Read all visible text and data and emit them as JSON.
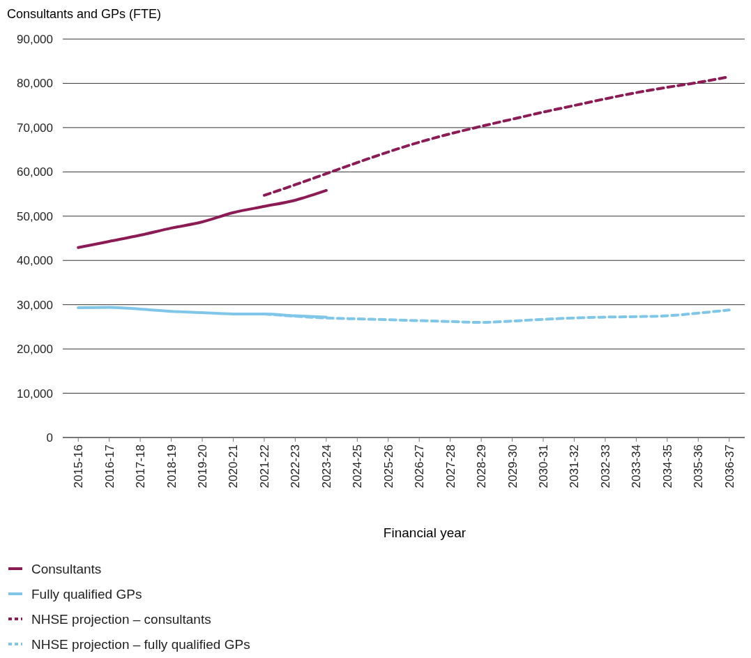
{
  "chart_data": {
    "type": "line",
    "ylabel": "Consultants and GPs (FTE)",
    "xlabel": "Financial year",
    "categories": [
      "2015-16",
      "2016-17",
      "2017-18",
      "2018-19",
      "2019-20",
      "2020-21",
      "2021-22",
      "2022-23",
      "2023-24",
      "2024-25",
      "2025-26",
      "2026-27",
      "2027-28",
      "2028-29",
      "2029-30",
      "2030-31",
      "2031-32",
      "2032-33",
      "2033-34",
      "2034-35",
      "2035-36",
      "2036-37"
    ],
    "series": [
      {
        "name": "Consultants",
        "color": "#8b1a55",
        "line_style": "solid",
        "values": [
          42900,
          44300,
          45700,
          47300,
          48700,
          50800,
          52200,
          53600,
          55800,
          null,
          null,
          null,
          null,
          null,
          null,
          null,
          null,
          null,
          null,
          null,
          null,
          null
        ]
      },
      {
        "name": "Fully qualified GPs",
        "color": "#7fc6e8",
        "line_style": "solid",
        "values": [
          29300,
          29400,
          29000,
          28500,
          28200,
          27900,
          27900,
          27500,
          27200,
          null,
          null,
          null,
          null,
          null,
          null,
          null,
          null,
          null,
          null,
          null,
          null,
          null
        ]
      },
      {
        "name": "NHSE projection – consultants",
        "color": "#8b1a55",
        "line_style": "dashed",
        "values": [
          null,
          null,
          null,
          null,
          null,
          null,
          54700,
          57100,
          59600,
          62100,
          64500,
          66700,
          68600,
          70300,
          71900,
          73500,
          75000,
          76500,
          77900,
          79100,
          80200,
          81500
        ]
      },
      {
        "name": "NHSE projection – fully qualified GPs",
        "color": "#7fc6e8",
        "line_style": "dashed",
        "values": [
          null,
          null,
          null,
          null,
          null,
          null,
          27900,
          27400,
          27000,
          26800,
          26600,
          26400,
          26200,
          26000,
          26300,
          26700,
          27000,
          27200,
          27300,
          27500,
          28100,
          28800
        ]
      }
    ],
    "ylim": [
      0,
      90000
    ],
    "yticks": [
      {
        "value": 0,
        "label": "0"
      },
      {
        "value": 10000,
        "label": "10,000"
      },
      {
        "value": 20000,
        "label": "20,000"
      },
      {
        "value": 30000,
        "label": "30,000"
      },
      {
        "value": 40000,
        "label": "40,000"
      },
      {
        "value": 50000,
        "label": "50,000"
      },
      {
        "value": 60000,
        "label": "60,000"
      },
      {
        "value": 70000,
        "label": "70,000"
      },
      {
        "value": 80000,
        "label": "80,000"
      },
      {
        "value": 90000,
        "label": "90,000"
      }
    ],
    "grid": "y",
    "legend": "bottom",
    "marker": "none"
  }
}
